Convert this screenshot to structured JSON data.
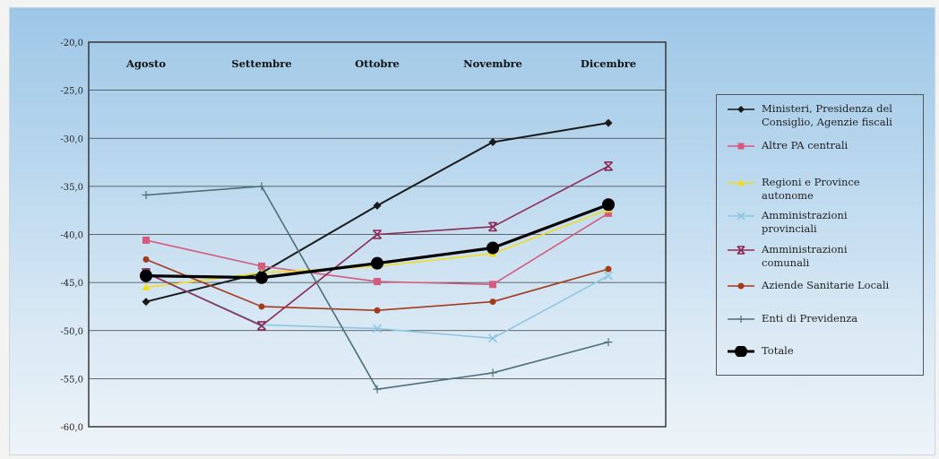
{
  "chart_data": {
    "type": "line",
    "categories": [
      "Agosto",
      "Settembre",
      "Ottobre",
      "Novembre",
      "Dicembre"
    ],
    "ylim": [
      -60,
      -20
    ],
    "yticks": [
      "-20,0",
      "-25,0",
      "-30,0",
      "-35,0",
      "-40,0",
      "-45,0",
      "-50,0",
      "-55,0",
      "-60,0"
    ],
    "ytick_values": [
      -20,
      -25,
      -30,
      -35,
      -40,
      -45,
      -50,
      -55,
      -60
    ],
    "grid": true,
    "legend_position": "right",
    "series": [
      {
        "name": "Ministeri, Presidenza del Consiglio, Agenzie fiscali",
        "color": "#1a1a1a",
        "marker": "diamond",
        "values": [
          -47.0,
          -44.0,
          -37.0,
          -30.4,
          -28.4
        ]
      },
      {
        "name": "Altre PA centrali",
        "color": "#d45b7e",
        "marker": "square",
        "values": [
          -40.6,
          -43.3,
          -44.9,
          -45.2,
          -37.8
        ]
      },
      {
        "name": "Regioni e Province autonome",
        "color": "#f2dc1e",
        "marker": "triangle",
        "values": [
          -45.5,
          -44.0,
          -43.3,
          -42.0,
          -37.4
        ]
      },
      {
        "name": "Amministrazioni provinciali",
        "color": "#8ec6e3",
        "marker": "x",
        "values": [
          -44.0,
          -49.4,
          -49.8,
          -50.8,
          -44.3
        ]
      },
      {
        "name": "Amministrazioni comunali",
        "color": "#8b2a55",
        "marker": "asterisk",
        "values": [
          -44.0,
          -49.5,
          -40.0,
          -39.2,
          -32.9
        ]
      },
      {
        "name": "Aziende Sanitarie Locali",
        "color": "#a33a1e",
        "marker": "circle",
        "values": [
          -42.6,
          -47.5,
          -47.9,
          -47.0,
          -43.6
        ]
      },
      {
        "name": "Enti di Previdenza",
        "color": "#4d6f78",
        "marker": "plus",
        "values": [
          -35.9,
          -35.0,
          -56.1,
          -54.4,
          -51.2
        ]
      },
      {
        "name": "Totale",
        "color": "#000000",
        "marker": "bigcircle",
        "values": [
          -44.3,
          -44.5,
          -43.0,
          -41.4,
          -36.9
        ]
      }
    ]
  },
  "legend": {
    "items": [
      {
        "lines": [
          "Ministeri, Presidenza del",
          "Consiglio, Agenzie fiscali"
        ],
        "series": 0
      },
      {
        "lines": [
          "Altre PA centrali"
        ],
        "series": 1
      },
      {
        "lines": [
          "Regioni e Province",
          "autonome"
        ],
        "series": 2
      },
      {
        "lines": [
          "Amministrazioni",
          "provinciali"
        ],
        "series": 3
      },
      {
        "lines": [
          "Amministrazioni",
          "comunali"
        ],
        "series": 4
      },
      {
        "lines": [
          "Aziende Sanitarie Locali"
        ],
        "series": 5
      },
      {
        "lines": [
          "Enti di Previdenza"
        ],
        "series": 6
      },
      {
        "lines": [
          "Totale"
        ],
        "series": 7
      }
    ]
  }
}
